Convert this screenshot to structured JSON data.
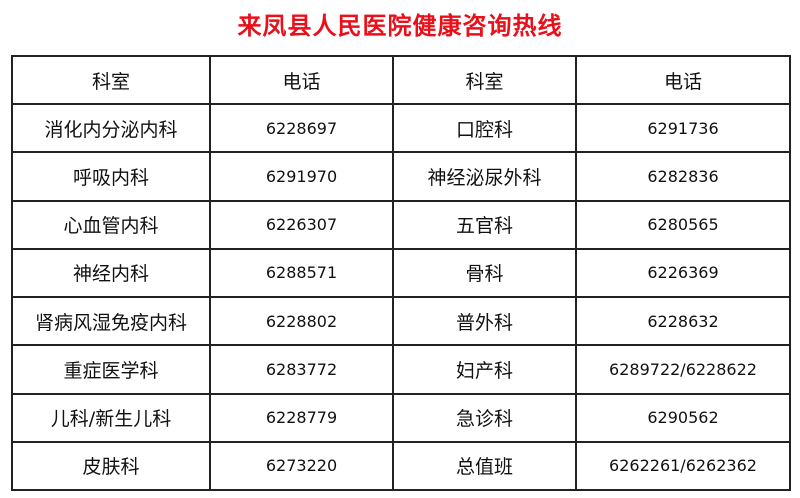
{
  "title": "来凤县人民医院健康咨询热线",
  "headers": [
    "科室",
    "电话",
    "科室",
    "电话"
  ],
  "rows": [
    {
      "dept_left": "消化内分泌内科",
      "phone_left": "6228697",
      "dept_right": "口腔科",
      "phone_right": "6291736"
    },
    {
      "dept_left": "呼吸内科",
      "phone_left": "6291970",
      "dept_right": "神经泌尿外科",
      "phone_right": "6282836"
    },
    {
      "dept_left": "心血管内科",
      "phone_left": "6226307",
      "dept_right": "五官科",
      "phone_right": "6280565"
    },
    {
      "dept_left": "神经内科",
      "phone_left": "6288571",
      "dept_right": "骨科",
      "phone_right": "6226369"
    },
    {
      "dept_left": "肾病风湿免疫内科",
      "phone_left": "6228802",
      "dept_right": "普外科",
      "phone_right": "6228632"
    },
    {
      "dept_left": "重症医学科",
      "phone_left": "6283772",
      "dept_right": "妇产科",
      "phone_right": "6289722/6228622"
    },
    {
      "dept_left": "儿科/新生儿科",
      "phone_left": "6228779",
      "dept_right": "急诊科",
      "phone_right": "6290562"
    },
    {
      "dept_left": "皮肤科",
      "phone_left": "6273220",
      "dept_right": "总值班",
      "phone_right": "6262261/6262362"
    }
  ],
  "colors": {
    "title": "#e8101a",
    "border": "#222222"
  }
}
